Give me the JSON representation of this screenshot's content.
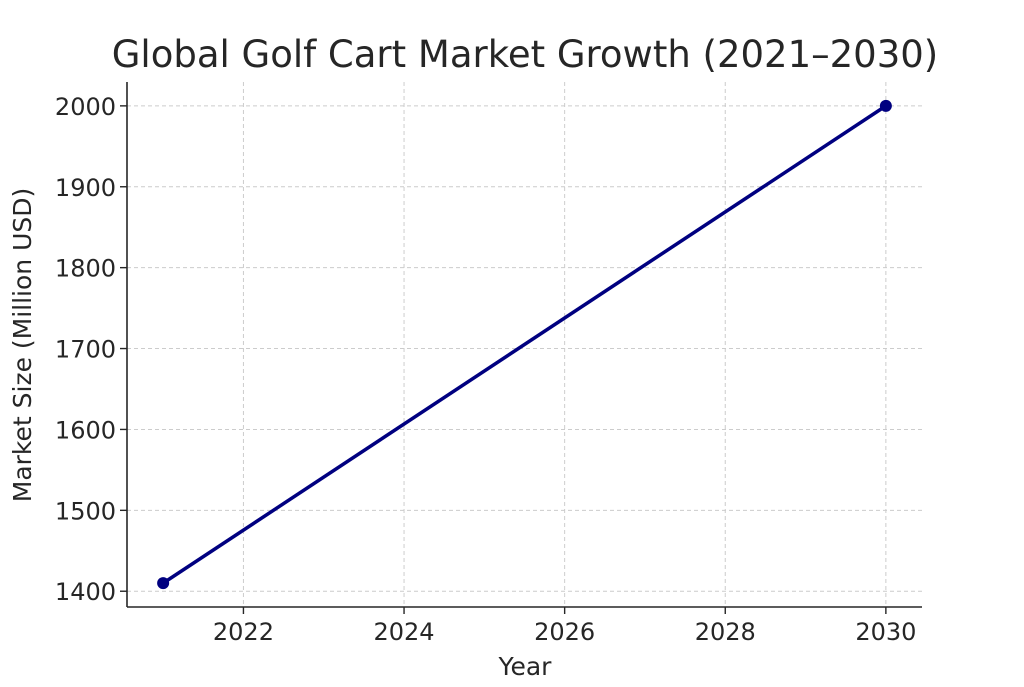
{
  "chart_data": {
    "type": "line",
    "title": "Global Golf Cart Market Growth (2021–2030)",
    "xlabel": "Year",
    "ylabel": "Market Size (Million USD)",
    "x": [
      2021,
      2030
    ],
    "series": [
      {
        "values": [
          1410,
          2000
        ],
        "color": "#000080",
        "marker": "circle"
      }
    ],
    "xlim": [
      2020.55,
      2030.45
    ],
    "ylim": [
      1380.5,
      2029.5
    ],
    "xticks": [
      2022,
      2024,
      2026,
      2028,
      2030
    ],
    "xtick_labels": [
      "2022",
      "2024",
      "2026",
      "2028",
      "2030"
    ],
    "yticks": [
      1400,
      1500,
      1600,
      1700,
      1800,
      1900,
      2000
    ],
    "ytick_labels": [
      "1400",
      "1500",
      "1600",
      "1700",
      "1800",
      "1900",
      "2000"
    ],
    "grid": true,
    "grid_style": "dashed",
    "legend": "none"
  }
}
